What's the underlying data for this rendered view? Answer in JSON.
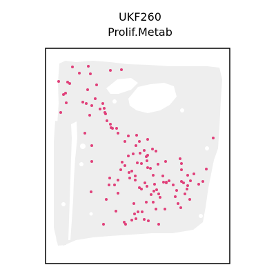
{
  "chart_data": {
    "type": "scatter",
    "title": "UKF260",
    "subtitle": "Prolif.Metab",
    "xlabel": "",
    "ylabel": "",
    "grid": false,
    "legend": "none",
    "axis_ticks": false,
    "colors": {
      "tissue_spots": "#eeeeee",
      "highlighted_spots": "#e0407a",
      "frame": "#000000"
    },
    "highlighted_spots": {
      "x": [
        105,
        115,
        128,
        131,
        160,
        176,
        98,
        85,
        101,
        95,
        92,
        88,
        140,
        127,
        125,
        133,
        149,
        151,
        145,
        153,
        138,
        120,
        96,
        130,
        152,
        155,
        160,
        161,
        163,
        169,
        171,
        186,
        198,
        202,
        214,
        221,
        226,
        214,
        213,
        205,
        209,
        197,
        203,
        181,
        186,
        193,
        199,
        212,
        214,
        218,
        222,
        229,
        240,
        236,
        245,
        241,
        187,
        261,
        263,
        263,
        266,
        272,
        272,
        281,
        294,
        299,
        309,
        181,
        177,
        175,
        171,
        171,
        191,
        196,
        196,
        202,
        210,
        224,
        213,
        188,
        205,
        219,
        227,
        230,
        232,
        237,
        241,
        251,
        256,
        263,
        271,
        276,
        288,
        268,
        275,
        262,
        258,
        254,
        226,
        239,
        230,
        223,
        222,
        200,
        195,
        191,
        197,
        182,
        194,
        206,
        212,
        209,
        215,
        159,
        158,
        166,
        154,
        168,
        180,
        150,
        132,
        133,
        133,
        123
      ],
      "y": [
        97,
        106,
        96,
        107,
        102,
        101,
        119,
        118,
        121,
        135,
        137,
        163,
        123,
        130,
        150,
        153,
        150,
        157,
        158,
        165,
        143,
        148,
        149,
        167,
        163,
        175,
        180,
        185,
        186,
        186,
        193,
        197,
        196,
        205,
        202,
        216,
        219,
        225,
        233,
        237,
        218,
        211,
        222,
        205,
        226,
        223,
        236,
        227,
        243,
        244,
        254,
        238,
        234,
        255,
        262,
        265,
        250,
        230,
        237,
        246,
        265,
        254,
        269,
        252,
        263,
        245,
        200,
        240,
        235,
        246,
        261,
        280,
        248,
        255,
        261,
        272,
        265,
        267,
        270,
        258,
        274,
        282,
        275,
        281,
        286,
        264,
        264,
        268,
        276,
        263,
        274,
        262,
        267,
        281,
        289,
        301,
        295,
        285,
        303,
        303,
        325,
        277,
        293,
        307,
        310,
        319,
        317,
        325,
        295,
        307,
        293,
        318,
        320,
        258,
        268,
        268,
        289,
        306,
        322,
        325,
        278,
        234,
        211,
        193
      ]
    }
  }
}
